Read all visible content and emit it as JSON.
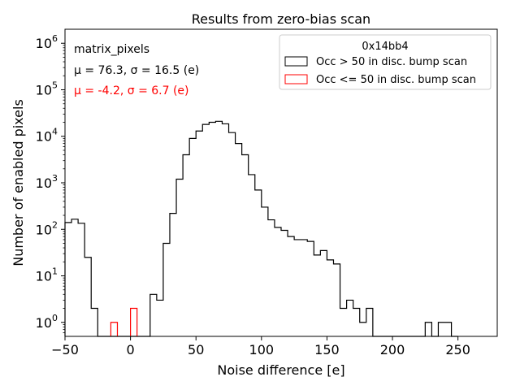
{
  "chart_data": {
    "type": "histogram",
    "title": "Results from zero-bias scan",
    "xlabel": "Noise difference [e]",
    "ylabel": "Number of enabled pixels",
    "xlim": [
      -50,
      280
    ],
    "ylim": [
      0.5,
      2000000
    ],
    "yscale": "log",
    "x_ticks": [
      -50,
      0,
      50,
      100,
      150,
      200,
      250
    ],
    "x_tick_labels": [
      "−50",
      "0",
      "50",
      "100",
      "150",
      "200",
      "250"
    ],
    "y_ticks": [
      1,
      10,
      100,
      1000,
      10000,
      100000,
      1000000
    ],
    "y_tick_labels": [
      {
        "base": "10",
        "exp": "0"
      },
      {
        "base": "10",
        "exp": "1"
      },
      {
        "base": "10",
        "exp": "2"
      },
      {
        "base": "10",
        "exp": "3"
      },
      {
        "base": "10",
        "exp": "4"
      },
      {
        "base": "10",
        "exp": "5"
      },
      {
        "base": "10",
        "exp": "6"
      }
    ],
    "annotations": [
      {
        "text": "matrix_pixels",
        "color": "#000000"
      },
      {
        "text": "μ = 76.3, σ = 16.5 (e)",
        "color": "#000000"
      },
      {
        "text": "μ = -4.2, σ = 6.7 (e)",
        "color": "#ff0000"
      }
    ],
    "legend": {
      "title": "0x14bb4",
      "position": "top-right",
      "entries": [
        {
          "label": "Occ > 50 in disc. bump scan",
          "color": "#000000"
        },
        {
          "label": "Occ <= 50 in disc. bump scan",
          "color": "#ff0000"
        }
      ]
    },
    "series": [
      {
        "name": "Occ > 50 in disc. bump scan",
        "color": "#000000",
        "bin_edges": [
          -50,
          -45,
          -40,
          -35,
          -30,
          -25,
          -20,
          -15,
          -10,
          -5,
          0,
          5,
          10,
          15,
          20,
          25,
          30,
          35,
          40,
          45,
          50,
          55,
          60,
          65,
          70,
          75,
          80,
          85,
          90,
          95,
          100,
          105,
          110,
          115,
          120,
          125,
          130,
          135,
          140,
          145,
          150,
          155,
          160,
          165,
          170,
          175,
          180,
          185,
          190,
          195,
          200,
          205,
          210,
          215,
          220,
          225,
          230,
          235,
          240,
          245,
          250
        ],
        "counts": [
          140,
          165,
          135,
          25,
          2,
          0.5,
          0.5,
          0.5,
          0.5,
          0.5,
          0.5,
          0.5,
          0.5,
          4,
          3,
          50,
          220,
          1200,
          4000,
          9000,
          13000,
          18000,
          20000,
          21000,
          18500,
          12000,
          7000,
          4000,
          1500,
          700,
          300,
          160,
          110,
          95,
          70,
          60,
          60,
          55,
          28,
          35,
          22,
          18,
          2,
          3,
          2,
          1,
          2,
          0.5,
          0.5,
          0.5,
          0.5,
          0.5,
          0.5,
          0.5,
          0.5,
          1,
          0.5,
          1,
          1,
          0.5
        ]
      },
      {
        "name": "Occ <= 50 in disc. bump scan",
        "color": "#ff0000",
        "bins": [
          {
            "x0": -15,
            "x1": -10,
            "count": 1
          },
          {
            "x0": 0,
            "x1": 5,
            "count": 2
          }
        ]
      }
    ]
  }
}
